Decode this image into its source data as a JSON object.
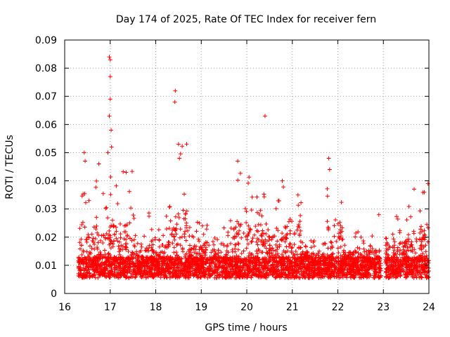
{
  "chart_data": {
    "type": "scatter",
    "title": "Day 174 of 2025, Rate Of TEC Index for receiver fern",
    "xlabel": "GPS time / hours",
    "ylabel": "ROTI / TECUs",
    "xlim": [
      16,
      24
    ],
    "ylim": [
      0,
      0.09
    ],
    "xticks": [
      "16",
      "17",
      "18",
      "19",
      "20",
      "21",
      "22",
      "23",
      "24"
    ],
    "yticks": [
      "0",
      "0.01",
      "0.02",
      "0.03",
      "0.04",
      "0.05",
      "0.06",
      "0.07",
      "0.08",
      "0.09"
    ],
    "grid": true,
    "marker": "plus",
    "color": "#ff0000",
    "series": [
      {
        "name": "ROTI",
        "notable_points": [
          {
            "x": 16.43,
            "y": 0.05
          },
          {
            "x": 16.45,
            "y": 0.047
          },
          {
            "x": 16.75,
            "y": 0.046
          },
          {
            "x": 16.95,
            "y": 0.05
          },
          {
            "x": 16.98,
            "y": 0.084
          },
          {
            "x": 17.0,
            "y": 0.083
          },
          {
            "x": 17.0,
            "y": 0.077
          },
          {
            "x": 17.0,
            "y": 0.069
          },
          {
            "x": 16.98,
            "y": 0.063
          },
          {
            "x": 17.02,
            "y": 0.058
          },
          {
            "x": 17.03,
            "y": 0.052
          },
          {
            "x": 17.35,
            "y": 0.043
          },
          {
            "x": 18.43,
            "y": 0.072
          },
          {
            "x": 18.42,
            "y": 0.068
          },
          {
            "x": 18.5,
            "y": 0.053
          },
          {
            "x": 18.52,
            "y": 0.048
          },
          {
            "x": 19.8,
            "y": 0.047
          },
          {
            "x": 20.4,
            "y": 0.063
          },
          {
            "x": 20.78,
            "y": 0.04
          },
          {
            "x": 21.8,
            "y": 0.048
          },
          {
            "x": 21.82,
            "y": 0.044
          },
          {
            "x": 22.9,
            "y": 0.028
          },
          {
            "x": 23.98,
            "y": 0.039
          }
        ],
        "envelope": [
          {
            "x_range": [
              16.3,
              16.9
            ],
            "y_range": [
              0.004,
              0.04
            ]
          },
          {
            "x_range": [
              16.9,
              17.5
            ],
            "y_range": [
              0.004,
              0.045
            ]
          },
          {
            "x_range": [
              17.5,
              18.3
            ],
            "y_range": [
              0.004,
              0.03
            ]
          },
          {
            "x_range": [
              18.3,
              18.7
            ],
            "y_range": [
              0.004,
              0.055
            ]
          },
          {
            "x_range": [
              18.7,
              19.6
            ],
            "y_range": [
              0.004,
              0.026
            ]
          },
          {
            "x_range": [
              19.6,
              20.2
            ],
            "y_range": [
              0.004,
              0.045
            ]
          },
          {
            "x_range": [
              20.2,
              21.2
            ],
            "y_range": [
              0.003,
              0.038
            ]
          },
          {
            "x_range": [
              21.2,
              21.7
            ],
            "y_range": [
              0.004,
              0.02
            ]
          },
          {
            "x_range": [
              21.7,
              22.1
            ],
            "y_range": [
              0.004,
              0.045
            ]
          },
          {
            "x_range": [
              22.1,
              22.95
            ],
            "y_range": [
              0.004,
              0.022
            ]
          },
          {
            "x_range": [
              23.05,
              23.5
            ],
            "y_range": [
              0.004,
              0.028
            ]
          },
          {
            "x_range": [
              23.5,
              24.0
            ],
            "y_range": [
              0.004,
              0.039
            ]
          }
        ],
        "gaps": [
          [
            22.95,
            23.05
          ]
        ]
      }
    ]
  }
}
